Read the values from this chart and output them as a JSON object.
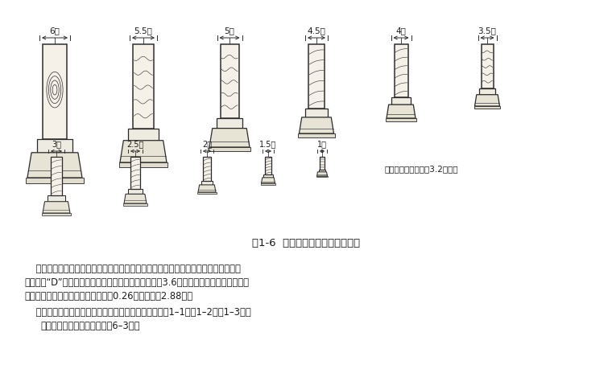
{
  "title": "图1-6  清式建筑斗口的十一个等级",
  "caption_note": "（清营造尺每寸等于3.2厘米）",
  "row1_labels": [
    "6寸",
    "5.5寸",
    "5寸",
    "4.5寸",
    "4寸",
    "3.5寸"
  ],
  "row2_labels": [
    "3寸",
    "2.5寸",
    "2寸",
    "1.5寸",
    "1寸"
  ],
  "para1_line1": "    小式建筑模数是由设计人员确定的，通常是在确定了开间尺寸或柱高尺寸以后，才确",
  "para1_line2": "定檐柱径“D”的具体尺寸。如果定一幢建筑明间面阀为3.6米，则可根据面阀、柱高与柱",
  "para1_line3": "径之间的比例关系，求出柱径尺寸为0.26米，柱高为2.88米。",
  "para2": "    大、小式建筑各部构件尺寸，详见构件权衡尺寸表（表1–1，表1–2，表1–3）。",
  "para3": "（斗拱权衡尺寸表见第六章表6–3）。",
  "bg_color": "#ffffff",
  "text_color": "#1a1a1a",
  "line_color": "#2a2a2a"
}
